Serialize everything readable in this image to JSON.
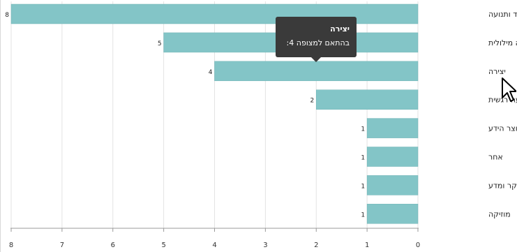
{
  "chart_data": {
    "type": "bar",
    "orientation": "horizontal",
    "categories": [
      "ספורט, ריקוד ותנועה",
      "יכולת הבעה מילולית",
      "יצירה",
      "יכולת הבעה רגשית",
      "אוצר הידע",
      "אחר",
      "חקר ומדע",
      "מוזיקה"
    ],
    "values": [
      8,
      5,
      4,
      2,
      1,
      1,
      1,
      1
    ],
    "xlim": [
      0,
      8
    ],
    "x_ticks": [
      "8",
      "7",
      "6",
      "5",
      "4",
      "3",
      "2",
      "1",
      "0"
    ],
    "x_direction": "reversed",
    "grid": true,
    "bar_color": "#83c5c7"
  },
  "tooltip": {
    "title": "יצירה",
    "text": "בהתאם למצופה 4:"
  }
}
